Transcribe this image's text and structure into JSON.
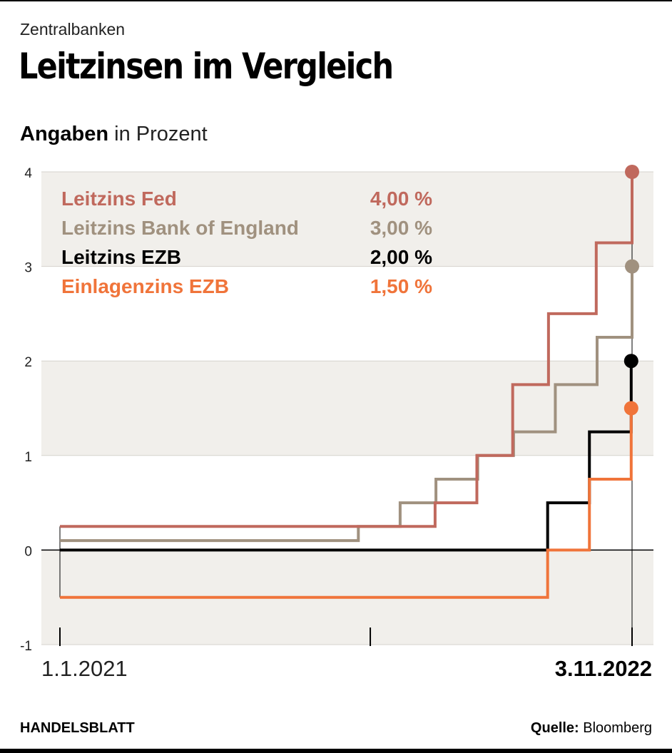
{
  "header": {
    "kicker": "Zentralbanken",
    "title": "Leitzinsen im Vergleich",
    "subtitle_bold": "Angaben",
    "subtitle_rest": " in Prozent"
  },
  "footer": {
    "brand": "HANDELSBLATT",
    "source_label": "Quelle:",
    "source_value": " Bloomberg"
  },
  "chart_data": {
    "type": "line",
    "step": true,
    "x_start_label": "1.1.2021",
    "x_end_label": "3.11.2022",
    "x_ticks": [
      "2021-01-01",
      "2021-12-31",
      "2022-11-03"
    ],
    "y_ticks": [
      -1,
      0,
      1,
      2,
      3,
      4
    ],
    "ylim": [
      -1,
      4
    ],
    "grid": "alternating horizontal bands",
    "legend_position": "top-left",
    "series": [
      {
        "name": "Leitzins Fed",
        "value_label": "4,00 %",
        "color": "#c0695d",
        "points": [
          [
            "2021-01-01",
            0.25
          ],
          [
            "2022-03-17",
            0.5
          ],
          [
            "2022-05-05",
            1.0
          ],
          [
            "2022-06-16",
            1.75
          ],
          [
            "2022-07-28",
            2.5
          ],
          [
            "2022-09-22",
            3.25
          ],
          [
            "2022-11-03",
            4.0
          ]
        ]
      },
      {
        "name": "Leitzins Bank of England",
        "value_label": "3,00 %",
        "color": "#a0917f",
        "points": [
          [
            "2021-01-01",
            0.1
          ],
          [
            "2021-12-17",
            0.25
          ],
          [
            "2022-02-04",
            0.5
          ],
          [
            "2022-03-18",
            0.75
          ],
          [
            "2022-05-06",
            1.0
          ],
          [
            "2022-06-17",
            1.25
          ],
          [
            "2022-08-05",
            1.75
          ],
          [
            "2022-09-23",
            2.25
          ],
          [
            "2022-11-03",
            3.0
          ]
        ]
      },
      {
        "name": "Leitzins EZB",
        "value_label": "2,00 %",
        "color": "#000000",
        "points": [
          [
            "2021-01-01",
            0.0
          ],
          [
            "2022-07-27",
            0.5
          ],
          [
            "2022-09-14",
            1.25
          ],
          [
            "2022-11-02",
            2.0
          ]
        ]
      },
      {
        "name": "Einlagenzins EZB",
        "value_label": "1,50 %",
        "color": "#f0743a",
        "points": [
          [
            "2021-01-01",
            -0.5
          ],
          [
            "2022-07-27",
            0.0
          ],
          [
            "2022-09-14",
            0.75
          ],
          [
            "2022-11-02",
            1.5
          ]
        ]
      }
    ]
  }
}
